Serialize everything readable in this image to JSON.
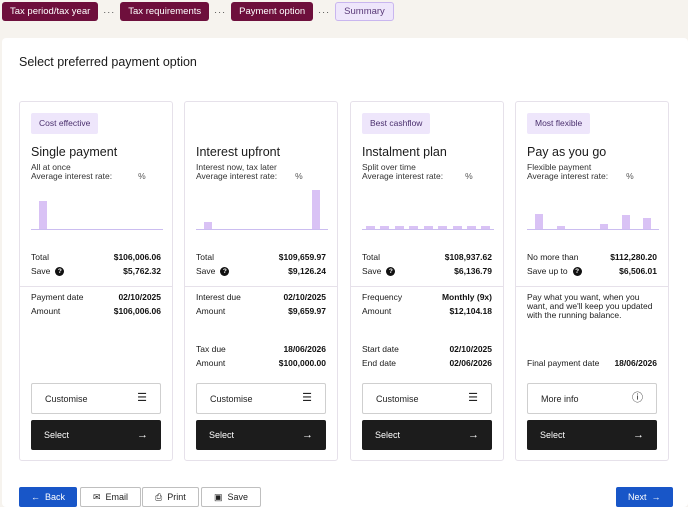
{
  "stepper": {
    "steps": [
      {
        "label": "Tax period/tax year"
      },
      {
        "label": "Tax requirements"
      },
      {
        "label": "Payment option"
      },
      {
        "label": "Summary"
      }
    ],
    "separator": "···"
  },
  "page": {
    "heading": "Select preferred payment option"
  },
  "cards": [
    {
      "tag": "Cost effective",
      "title": "Single payment",
      "subtitle": "All at once",
      "rate_label": "Average interest rate:",
      "rate_value": "%",
      "bars": [
        0.75,
        0,
        0,
        0,
        0,
        0,
        0,
        0
      ],
      "total_label": "Total",
      "total_value": "$106,006.06",
      "save_label": "Save",
      "save_value": "$5,762.32",
      "rows": [
        {
          "label": "Payment date",
          "value": "02/10/2025"
        },
        {
          "label": "Amount",
          "value": "$106,006.06"
        }
      ],
      "customise_label": "Customise",
      "select_label": "Select"
    },
    {
      "tag": "",
      "title": "Interest upfront",
      "subtitle": "Interest now, tax later",
      "rate_label": "Average interest rate:",
      "rate_value": "%",
      "total_label": "Total",
      "total_value": "$109,659.97",
      "save_label": "Save",
      "save_value": "$9,126.24",
      "rows": [
        {
          "label": "Interest due",
          "value": "02/10/2025"
        },
        {
          "label": "Amount",
          "value": "$9,659.97"
        },
        {
          "label": "Tax due",
          "value": "18/06/2026"
        },
        {
          "label": "Amount",
          "value": "$100,000.00"
        }
      ],
      "customise_label": "Customise",
      "select_label": "Select"
    },
    {
      "tag": "Best cashflow",
      "title": "Instalment plan",
      "subtitle": "Split over time",
      "rate_label": "Average interest rate:",
      "rate_value": "%",
      "total_label": "Total",
      "total_value": "$108,937.62",
      "save_label": "Save",
      "save_value": "$6,136.79",
      "rows": [
        {
          "label": "Frequency",
          "value": "Monthly (9x)"
        },
        {
          "label": "Amount",
          "value": "$12,104.18"
        },
        {
          "label": "Start date",
          "value": "02/10/2025"
        },
        {
          "label": "End date",
          "value": "02/06/2026"
        }
      ],
      "customise_label": "Customise",
      "select_label": "Select"
    },
    {
      "tag": "Most flexible",
      "title": "Pay as you go",
      "subtitle": "Flexible payment",
      "rate_label": "Average interest rate:",
      "rate_value": "%",
      "total_label": "No more than",
      "total_value": "$112,280.20",
      "save_label": "Save up to",
      "save_value": "$6,506.01",
      "description": "Pay what you want, when you want, and we'll keep you updated with the running balance.",
      "rows": [
        {
          "label": "Final payment date",
          "value": "18/06/2026"
        }
      ],
      "customise_label": "More info",
      "select_label": "Select"
    }
  ],
  "footer": {
    "back": "Back",
    "email": "Email",
    "print": "Print",
    "save": "Save",
    "next": "Next"
  },
  "colors": {
    "brand": "#6e0f3c",
    "accent": "#1856c8",
    "bar": "#d9c2f5"
  }
}
